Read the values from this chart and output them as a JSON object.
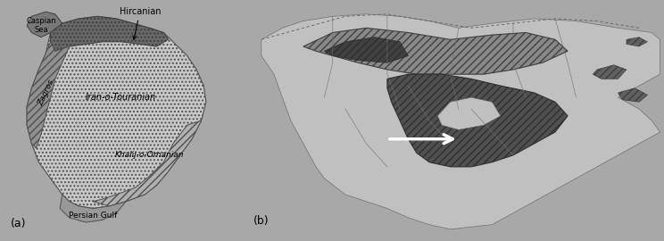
{
  "background_color": "#a8a8a8",
  "fig_width": 7.44,
  "fig_height": 2.7,
  "label_a": "(a)",
  "label_b": "(b)",
  "annotations_left": {
    "hircanian": "Hircanian",
    "caspian": "Caspian\nSea",
    "iran_o_touranian": "Iran-o-Touranian",
    "zagros": "Zagros",
    "khalij": "Khalij-o-Omanian",
    "persian_gulf": "Persian Gulf"
  },
  "zone_colors": {
    "iran_touranian": "#c8c8c8",
    "hircanian": "#686868",
    "caspian_sea": "#787878",
    "zagros": "#909090",
    "khalij": "#b0b0b0",
    "persian_gulf": "#989898"
  },
  "dist_colors": {
    "light_hatch": "#a0a0a0",
    "dark_fill": "#484848",
    "medium": "#686868",
    "continent": "#c0c0c0"
  }
}
